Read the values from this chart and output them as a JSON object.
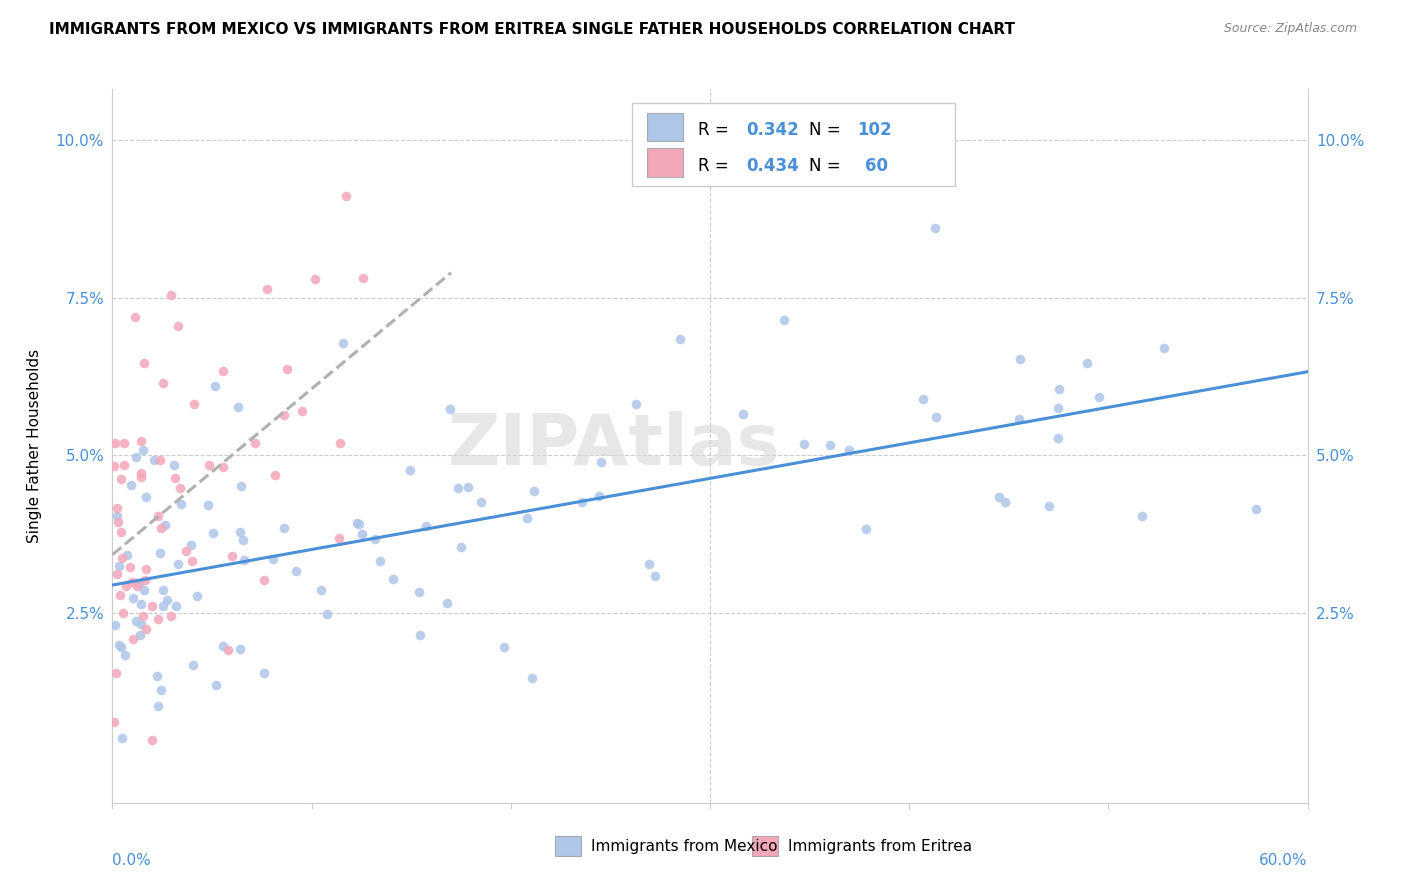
{
  "title": "IMMIGRANTS FROM MEXICO VS IMMIGRANTS FROM ERITREA SINGLE FATHER HOUSEHOLDS CORRELATION CHART",
  "source": "Source: ZipAtlas.com",
  "ylabel": "Single Father Households",
  "yticks": [
    0.0,
    0.025,
    0.05,
    0.075,
    0.1
  ],
  "ytick_labels": [
    "",
    "2.5%",
    "5.0%",
    "7.5%",
    "10.0%"
  ],
  "xlim": [
    0.0,
    0.6
  ],
  "ylim": [
    -0.005,
    0.108
  ],
  "R_mexico": "0.342",
  "N_mexico": "102",
  "R_eritrea": "0.434",
  "N_eritrea": "60",
  "color_mexico": "#aec6e8",
  "color_eritrea": "#f4a7b9",
  "trendline_mexico": "#4a90d9",
  "trendline_eritrea": "#b0b0b0",
  "watermark": "ZIPAtlas",
  "legend_label_mexico": "Immigrants from Mexico",
  "legend_label_eritrea": "Immigrants from Eritrea"
}
